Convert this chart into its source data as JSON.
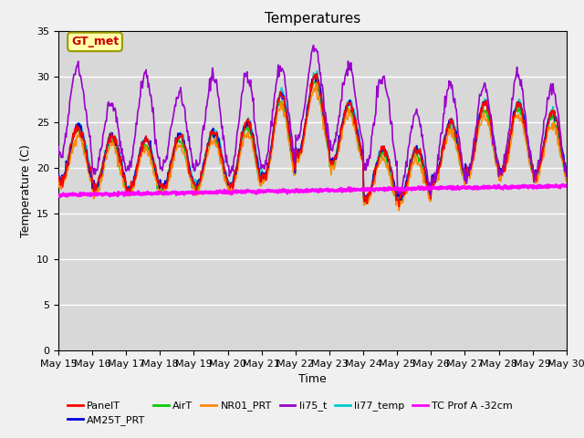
{
  "title": "Temperatures",
  "xlabel": "Time",
  "ylabel": "Temperature (C)",
  "ylim": [
    0,
    35
  ],
  "xlim_days": [
    15,
    30
  ],
  "plot_bg": "#d8d8d8",
  "figure_bg": "#f0f0f0",
  "annotation_text": "GT_met",
  "annotation_color": "#cc0000",
  "annotation_bbox": {
    "boxstyle": "round,pad=0.3",
    "facecolor": "#ffffaa",
    "edgecolor": "#999900"
  },
  "series": {
    "PanelT": {
      "color": "#ff0000",
      "lw": 1.2,
      "zorder": 5
    },
    "AM25T_PRT": {
      "color": "#0000dd",
      "lw": 1.2,
      "zorder": 4
    },
    "AirT": {
      "color": "#00cc00",
      "lw": 1.2,
      "zorder": 4
    },
    "NR01_PRT": {
      "color": "#ff8800",
      "lw": 1.2,
      "zorder": 4
    },
    "li75_t": {
      "color": "#9900cc",
      "lw": 1.2,
      "zorder": 6
    },
    "li77_temp": {
      "color": "#00cccc",
      "lw": 1.2,
      "zorder": 3
    },
    "TC Prof A -32cm": {
      "color": "#ff00ff",
      "lw": 2.5,
      "zorder": 7
    }
  },
  "xtick_labels": [
    "May 15",
    "May 16",
    "May 17",
    "May 18",
    "May 19",
    "May 20",
    "May 21",
    "May 22",
    "May 23",
    "May 24",
    "May 25",
    "May 26",
    "May 27",
    "May 28",
    "May 29",
    "May 30"
  ],
  "xtick_positions": [
    15,
    16,
    17,
    18,
    19,
    20,
    21,
    22,
    23,
    24,
    25,
    26,
    27,
    28,
    29,
    30
  ],
  "ytick_positions": [
    0,
    5,
    10,
    15,
    20,
    25,
    30,
    35
  ],
  "ncol_legend": 6
}
